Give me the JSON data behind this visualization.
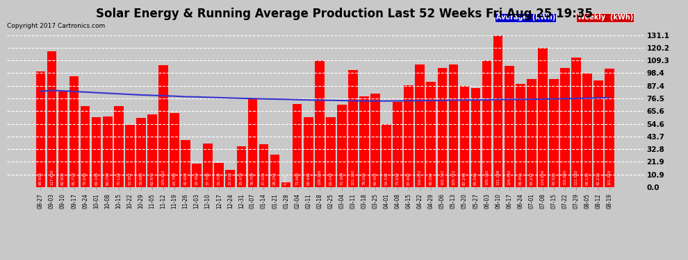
{
  "title": "Solar Energy & Running Average Production Last 52 Weeks Fri Aug 25 19:35",
  "copyright": "Copyright 2017 Cartronics.com",
  "bar_color": "#ff0000",
  "avg_line_color": "#3333cc",
  "background_color": "#c8c8c8",
  "plot_bg_color": "#c8c8c8",
  "grid_color": "#ffffff",
  "yticks": [
    0.0,
    10.9,
    21.9,
    32.8,
    43.7,
    54.6,
    65.6,
    76.5,
    87.4,
    98.4,
    109.3,
    120.2,
    131.1
  ],
  "legend_avg_bg": "#0000cc",
  "legend_weekly_bg": "#cc0000",
  "weekly_values": [
    99.936,
    117.426,
    82.606,
    95.714,
    70.04,
    60.164,
    60.794,
    70.124,
    53.952,
    59.68,
    62.97,
    105.402,
    63.788,
    40.428,
    20.424,
    37.796,
    20.702,
    15.01,
    35.474,
    76.708,
    37.026,
    28.256,
    4.312,
    71.66,
    60.446,
    109.256,
    60.148,
    71.364,
    101.15,
    78.164,
    80.452,
    54.532,
    73.652,
    87.692,
    106.072,
    90.592,
    102.732,
    105.772,
    87.248,
    85.548,
    109.192,
    131.148,
    104.392,
    88.956,
    93.232,
    119.856,
    93.52,
    102.68,
    111.592,
    98.13,
    92.21,
    101.916
  ],
  "x_labels": [
    "08-27",
    "09-03",
    "09-10",
    "09-17",
    "09-24",
    "10-01",
    "10-08",
    "10-15",
    "10-22",
    "10-29",
    "11-05",
    "11-12",
    "11-19",
    "11-26",
    "12-03",
    "12-10",
    "12-17",
    "12-24",
    "12-31",
    "01-07",
    "01-14",
    "01-21",
    "01-28",
    "02-04",
    "02-11",
    "02-18",
    "02-25",
    "03-04",
    "03-11",
    "03-18",
    "03-25",
    "04-01",
    "04-08",
    "04-15",
    "04-22",
    "04-29",
    "05-06",
    "05-13",
    "05-20",
    "05-27",
    "06-03",
    "06-10",
    "06-17",
    "06-24",
    "07-01",
    "07-08",
    "07-15",
    "07-22",
    "07-29",
    "08-05",
    "08-12",
    "08-19"
  ],
  "avg_values": [
    82.5,
    83.5,
    83.0,
    82.5,
    82.0,
    81.5,
    81.0,
    80.5,
    80.0,
    79.5,
    79.2,
    78.8,
    78.5,
    78.0,
    77.8,
    77.5,
    77.2,
    76.9,
    76.6,
    76.4,
    76.1,
    75.9,
    75.7,
    75.4,
    75.2,
    75.0,
    74.9,
    74.7,
    74.5,
    74.4,
    74.3,
    74.3,
    74.4,
    74.5,
    74.6,
    74.7,
    74.8,
    75.0,
    75.1,
    75.2,
    75.3,
    75.5,
    75.6,
    75.7,
    75.8,
    76.0,
    76.1,
    76.3,
    76.5,
    76.7,
    76.9,
    77.2
  ],
  "ylim": [
    0,
    131.1
  ],
  "title_fontsize": 12,
  "copyright_fontsize": 6.5,
  "label_fontsize": 5.5,
  "value_fontsize": 4.0
}
